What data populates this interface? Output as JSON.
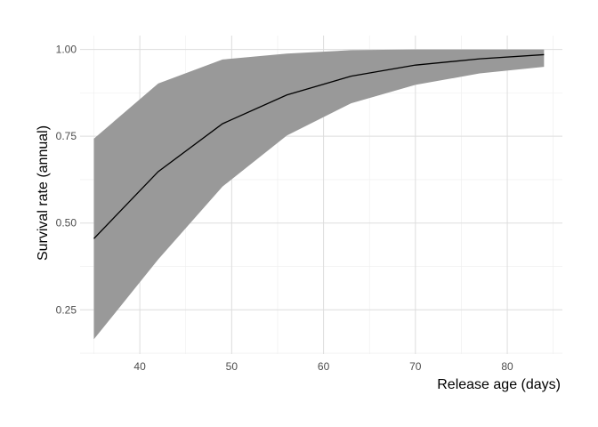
{
  "chart_data": {
    "type": "area",
    "title": "",
    "xlabel": "Release age (days)",
    "ylabel": "Survival rate (annual)",
    "xlim": [
      33.5,
      86
    ],
    "ylim": [
      0.1225,
      1.04
    ],
    "x_ticks": [
      40,
      50,
      60,
      70,
      80
    ],
    "y_ticks": [
      0.25,
      0.5,
      0.75,
      1.0
    ],
    "x_tick_labels": [
      "40",
      "50",
      "60",
      "70",
      "80"
    ],
    "y_tick_labels": [
      "0.25",
      "0.50",
      "0.75",
      "1.00"
    ],
    "grid": true,
    "legend": "none",
    "x": [
      35,
      42,
      49,
      56,
      63,
      70,
      77,
      84
    ],
    "series": [
      {
        "values": [
          0.455,
          0.648,
          0.786,
          0.869,
          0.923,
          0.955,
          0.973,
          0.985
        ]
      }
    ],
    "ribbon": {
      "lower": [
        0.165,
        0.395,
        0.605,
        0.752,
        0.845,
        0.898,
        0.931,
        0.95
      ],
      "upper": [
        0.743,
        0.902,
        0.971,
        0.988,
        0.998,
        1.0,
        1.0,
        1.0
      ]
    },
    "colors": {
      "ribbon": "#999999",
      "line": "#000000",
      "grid_major": "#dddddd",
      "grid_minor": "#eeeeee"
    }
  }
}
